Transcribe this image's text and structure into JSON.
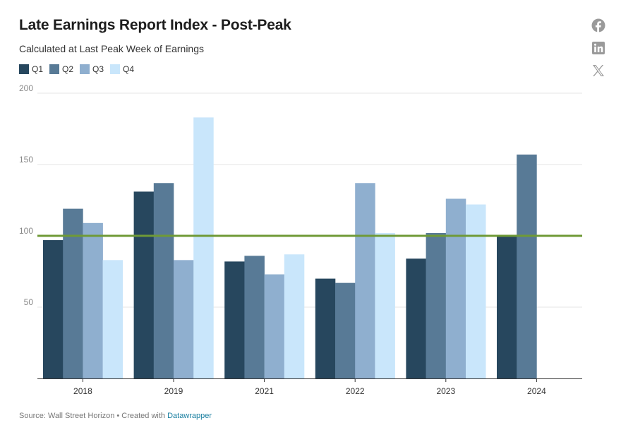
{
  "title": "Late Earnings Report Index - Post-Peak",
  "subtitle": "Calculated at Last Peak Week of Earnings",
  "legend": [
    {
      "label": "Q1",
      "color": "#27475e"
    },
    {
      "label": "Q2",
      "color": "#587a96"
    },
    {
      "label": "Q3",
      "color": "#8fafcf"
    },
    {
      "label": "Q4",
      "color": "#c9e6fb"
    }
  ],
  "share_icons": [
    "facebook-icon",
    "linkedin-icon",
    "x-icon"
  ],
  "footer": {
    "source": "Source: Wall Street Horizon • Created with ",
    "link_text": "Datawrapper"
  },
  "chart_data": {
    "type": "bar",
    "categories": [
      "2018",
      "2019",
      "2021",
      "2022",
      "2023",
      "2024"
    ],
    "series": [
      {
        "name": "Q1",
        "color": "#27475e",
        "values": [
          97,
          131,
          82,
          70,
          84,
          100
        ]
      },
      {
        "name": "Q2",
        "color": "#587a96",
        "values": [
          119,
          137,
          86,
          67,
          102,
          157
        ]
      },
      {
        "name": "Q3",
        "color": "#8fafcf",
        "values": [
          109,
          83,
          73,
          137,
          126,
          null
        ]
      },
      {
        "name": "Q4",
        "color": "#c9e6fb",
        "values": [
          83,
          183,
          87,
          102,
          122,
          null
        ]
      }
    ],
    "yticks": [
      50,
      100,
      150,
      200
    ],
    "ylim": [
      0,
      200
    ],
    "reference_line": {
      "value": 100,
      "color": "#6f9a37"
    },
    "grid": true,
    "legend_position": "top-left"
  }
}
